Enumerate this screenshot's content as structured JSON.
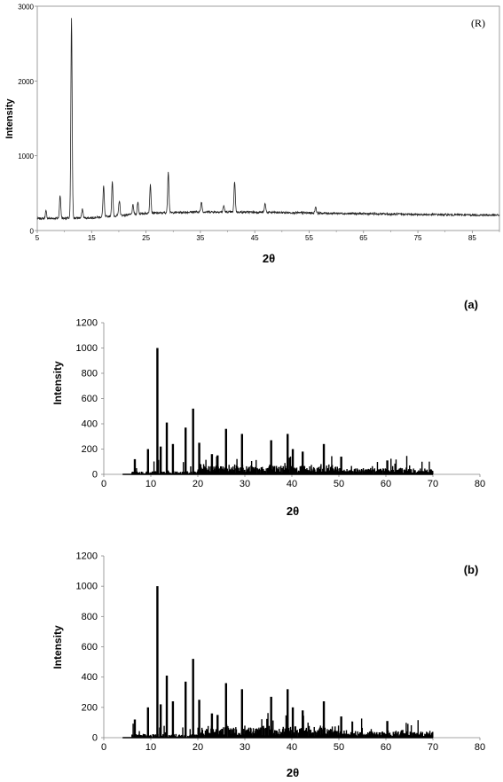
{
  "chart_data": [
    {
      "type": "line",
      "panel_label": "(R)",
      "title": "",
      "xlabel": "2θ",
      "ylabel": "Intensity",
      "xlim": [
        5,
        90
      ],
      "ylim": [
        0,
        3000
      ],
      "xticks": [
        5,
        15,
        25,
        35,
        45,
        55,
        65,
        75,
        85
      ],
      "yticks": [
        0,
        1000,
        2000,
        3000
      ],
      "x_minor_ticks": [
        10,
        20,
        30,
        40,
        50,
        60,
        70,
        80,
        90
      ],
      "x_tick_labels": [
        "5",
        "15",
        "25",
        "35",
        "45",
        "55",
        "65",
        "75",
        "85"
      ],
      "y_tick_labels": [
        "0",
        "1000",
        "2000",
        "3000"
      ],
      "grid": false,
      "color": "#222222",
      "baseline": [
        [
          5,
          160
        ],
        [
          15,
          170
        ],
        [
          25,
          230
        ],
        [
          35,
          250
        ],
        [
          45,
          245
        ],
        [
          55,
          235
        ],
        [
          65,
          225
        ],
        [
          75,
          215
        ],
        [
          90,
          205
        ]
      ],
      "peaks": [
        {
          "x": 6.6,
          "y": 260
        },
        {
          "x": 9.2,
          "y": 460
        },
        {
          "x": 11.3,
          "y": 2830
        },
        {
          "x": 13.3,
          "y": 290
        },
        {
          "x": 17.2,
          "y": 600
        },
        {
          "x": 18.8,
          "y": 650
        },
        {
          "x": 20.1,
          "y": 400
        },
        {
          "x": 22.6,
          "y": 340
        },
        {
          "x": 23.5,
          "y": 380
        },
        {
          "x": 25.8,
          "y": 620
        },
        {
          "x": 29.1,
          "y": 790
        },
        {
          "x": 35.2,
          "y": 380
        },
        {
          "x": 39.3,
          "y": 330
        },
        {
          "x": 41.3,
          "y": 660
        },
        {
          "x": 46.9,
          "y": 360
        },
        {
          "x": 56.2,
          "y": 320
        }
      ]
    },
    {
      "type": "bar",
      "panel_label": "(a)",
      "title": "",
      "xlabel": "2θ",
      "ylabel": "Intensity",
      "xlim": [
        0,
        80
      ],
      "ylim": [
        0,
        1200
      ],
      "xticks": [
        0,
        10,
        20,
        30,
        40,
        50,
        60,
        70,
        80
      ],
      "yticks": [
        0,
        200,
        400,
        600,
        800,
        1000,
        1200
      ],
      "x_tick_labels": [
        "0",
        "10",
        "20",
        "30",
        "40",
        "50",
        "60",
        "70",
        "80"
      ],
      "y_tick_labels": [
        "0",
        "200",
        "400",
        "600",
        "800",
        "1000",
        "1200"
      ],
      "grid": false,
      "color": "#000000",
      "range": [
        4,
        70
      ],
      "peaks": [
        {
          "x": 6.6,
          "y": 120
        },
        {
          "x": 9.4,
          "y": 200
        },
        {
          "x": 11.4,
          "y": 1000
        },
        {
          "x": 12.1,
          "y": 220
        },
        {
          "x": 13.4,
          "y": 410
        },
        {
          "x": 14.7,
          "y": 240
        },
        {
          "x": 17.4,
          "y": 370
        },
        {
          "x": 19.0,
          "y": 520
        },
        {
          "x": 20.3,
          "y": 250
        },
        {
          "x": 23.0,
          "y": 160
        },
        {
          "x": 24.2,
          "y": 150
        },
        {
          "x": 26.0,
          "y": 360
        },
        {
          "x": 29.4,
          "y": 320
        },
        {
          "x": 35.6,
          "y": 270
        },
        {
          "x": 39.1,
          "y": 320
        },
        {
          "x": 40.2,
          "y": 200
        },
        {
          "x": 42.3,
          "y": 180
        },
        {
          "x": 46.8,
          "y": 240
        },
        {
          "x": 50.5,
          "y": 140
        },
        {
          "x": 60.3,
          "y": 110
        }
      ]
    },
    {
      "type": "bar",
      "panel_label": "(b)",
      "title": "",
      "xlabel": "2θ",
      "ylabel": "Intensity",
      "xlim": [
        0,
        80
      ],
      "ylim": [
        0,
        1200
      ],
      "xticks": [
        0,
        10,
        20,
        30,
        40,
        50,
        60,
        70,
        80
      ],
      "yticks": [
        0,
        200,
        400,
        600,
        800,
        1000,
        1200
      ],
      "x_tick_labels": [
        "0",
        "10",
        "20",
        "30",
        "40",
        "50",
        "60",
        "70",
        "80"
      ],
      "y_tick_labels": [
        "0",
        "200",
        "400",
        "600",
        "800",
        "1000",
        "1200"
      ],
      "grid": false,
      "color": "#000000",
      "range": [
        4,
        70
      ],
      "peaks": [
        {
          "x": 6.6,
          "y": 120
        },
        {
          "x": 9.4,
          "y": 200
        },
        {
          "x": 11.4,
          "y": 1000
        },
        {
          "x": 12.1,
          "y": 220
        },
        {
          "x": 13.4,
          "y": 410
        },
        {
          "x": 14.7,
          "y": 240
        },
        {
          "x": 17.4,
          "y": 370
        },
        {
          "x": 19.0,
          "y": 520
        },
        {
          "x": 20.3,
          "y": 250
        },
        {
          "x": 23.0,
          "y": 160
        },
        {
          "x": 24.2,
          "y": 150
        },
        {
          "x": 26.0,
          "y": 360
        },
        {
          "x": 29.4,
          "y": 320
        },
        {
          "x": 35.6,
          "y": 270
        },
        {
          "x": 39.1,
          "y": 320
        },
        {
          "x": 40.2,
          "y": 200
        },
        {
          "x": 42.3,
          "y": 180
        },
        {
          "x": 46.8,
          "y": 240
        },
        {
          "x": 50.5,
          "y": 140
        },
        {
          "x": 60.3,
          "y": 110
        }
      ]
    }
  ]
}
